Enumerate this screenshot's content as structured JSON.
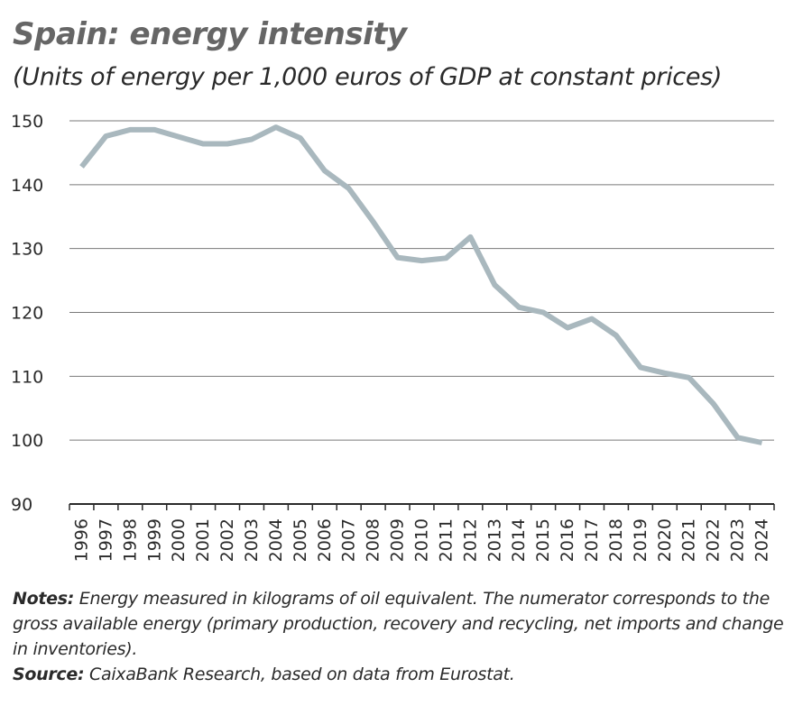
{
  "header": {
    "title": "Spain: energy intensity",
    "subtitle": "(Units of energy per 1,000 euros of GDP at constant prices)"
  },
  "chart_data": {
    "type": "line",
    "title": "Spain: energy intensity",
    "subtitle": "(Units of energy per 1,000 euros of GDP at constant prices)",
    "xlabel": "",
    "ylabel": "",
    "categories": [
      "1996",
      "1997",
      "1998",
      "1999",
      "2000",
      "2001",
      "2002",
      "2003",
      "2004",
      "2005",
      "2006",
      "2007",
      "2008",
      "2009",
      "2010",
      "2011",
      "2012",
      "2013",
      "2014",
      "2015",
      "2016",
      "2017",
      "2018",
      "2019",
      "2020",
      "2021",
      "2022",
      "2023",
      "2024"
    ],
    "series": [
      {
        "values": [
          142.8,
          147.6,
          148.6,
          148.6,
          147.5,
          146.4,
          146.4,
          147.1,
          149.0,
          147.3,
          142.2,
          139.4,
          134.2,
          128.6,
          128.1,
          128.5,
          131.8,
          124.3,
          120.8,
          120.0,
          117.6,
          119.0,
          116.4,
          111.4,
          110.5,
          109.8,
          105.7,
          100.4,
          99.6
        ],
        "color": "#a9b8be"
      }
    ],
    "ylim": [
      90,
      150
    ],
    "yticks": [
      90,
      100,
      110,
      120,
      130,
      140,
      150
    ],
    "grid": true,
    "legend": "none"
  },
  "notes": {
    "notes_label": "Notes:",
    "notes_text": " Energy measured in kilograms of oil equivalent. The numerator corresponds to the gross available energy (primary production, recovery and recycling, net imports and change in inventories).",
    "source_label": "Source:",
    "source_text": " CaixaBank Research, based on data from Eurostat."
  }
}
